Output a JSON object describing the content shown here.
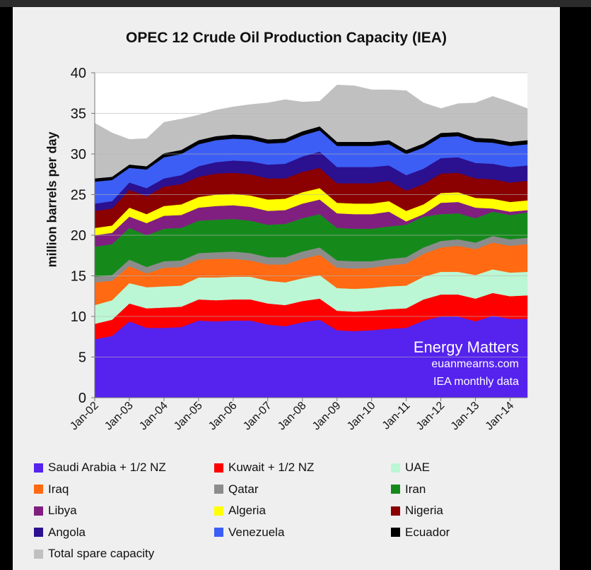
{
  "chart_data": {
    "type": "area",
    "stacked": true,
    "title": "OPEC 12 Crude Oil Production Capacity (IEA)",
    "xlabel": "",
    "ylabel": "million barrels per day",
    "ylim": [
      0,
      40
    ],
    "yticks": [
      "0",
      "5",
      "10",
      "15",
      "20",
      "25",
      "30",
      "35",
      "40"
    ],
    "xticks": [
      "Jan-02",
      "Jan-03",
      "Jan-04",
      "Jan-05",
      "Jan-06",
      "Jan-07",
      "Jan-08",
      "Jan-09",
      "Jan-10",
      "Jan-11",
      "Jan-12",
      "Jan-13",
      "Jan-14"
    ],
    "x": [
      "2002-01",
      "2002-07",
      "2003-01",
      "2003-07",
      "2004-01",
      "2004-07",
      "2005-01",
      "2005-07",
      "2006-01",
      "2006-07",
      "2007-01",
      "2007-07",
      "2008-01",
      "2008-07",
      "2009-01",
      "2009-07",
      "2010-01",
      "2010-07",
      "2011-01",
      "2011-07",
      "2012-01",
      "2012-07",
      "2013-01",
      "2013-07",
      "2014-01",
      "2014-07"
    ],
    "grid": "horizontal",
    "legend_position": "bottom",
    "series": [
      {
        "name": "Saudi Arabia + 1/2 NZ",
        "color": "#5522ee",
        "values": [
          7.2,
          7.6,
          9.4,
          8.6,
          8.6,
          8.7,
          9.5,
          9.4,
          9.5,
          9.5,
          9.0,
          8.8,
          9.3,
          9.6,
          8.3,
          8.2,
          8.3,
          8.5,
          8.6,
          9.5,
          10.0,
          10.0,
          9.4,
          10.1,
          9.7,
          9.7
        ]
      },
      {
        "name": "Kuwait + 1/2 NZ",
        "color": "#ff0000",
        "values": [
          1.9,
          2.0,
          2.2,
          2.4,
          2.5,
          2.5,
          2.6,
          2.6,
          2.6,
          2.6,
          2.6,
          2.6,
          2.6,
          2.6,
          2.4,
          2.4,
          2.4,
          2.4,
          2.4,
          2.6,
          2.7,
          2.7,
          2.8,
          2.8,
          2.8,
          2.9
        ]
      },
      {
        "name": "UAE",
        "color": "#bbf7d4",
        "values": [
          2.3,
          2.4,
          2.5,
          2.6,
          2.6,
          2.6,
          2.7,
          2.8,
          2.8,
          2.8,
          2.8,
          2.8,
          2.8,
          2.9,
          2.8,
          2.8,
          2.8,
          2.8,
          2.8,
          2.8,
          2.8,
          2.8,
          2.9,
          2.9,
          2.9,
          2.9
        ]
      },
      {
        "name": "Iraq",
        "color": "#ff6a13",
        "values": [
          2.8,
          2.4,
          2.1,
          1.7,
          2.3,
          2.3,
          2.2,
          2.3,
          2.2,
          2.0,
          2.0,
          2.2,
          2.4,
          2.5,
          2.5,
          2.5,
          2.5,
          2.6,
          2.7,
          2.8,
          3.0,
          3.2,
          3.2,
          3.3,
          3.3,
          3.4
        ]
      },
      {
        "name": "Qatar",
        "color": "#8c8c8c",
        "values": [
          0.7,
          0.7,
          0.8,
          0.8,
          0.8,
          0.8,
          0.8,
          0.8,
          0.9,
          0.9,
          0.9,
          0.9,
          0.9,
          0.9,
          0.9,
          0.9,
          0.8,
          0.8,
          0.8,
          0.8,
          0.8,
          0.8,
          0.8,
          0.8,
          0.8,
          0.8
        ]
      },
      {
        "name": "Iran",
        "color": "#158a1b",
        "values": [
          3.7,
          3.8,
          3.9,
          3.9,
          4.0,
          4.0,
          4.0,
          4.0,
          4.0,
          4.0,
          4.0,
          4.1,
          4.1,
          4.1,
          4.0,
          4.0,
          4.0,
          4.0,
          4.0,
          3.8,
          3.3,
          3.2,
          3.0,
          3.0,
          3.0,
          3.1
        ]
      },
      {
        "name": "Libya",
        "color": "#801f80",
        "values": [
          1.4,
          1.4,
          1.4,
          1.5,
          1.6,
          1.6,
          1.6,
          1.7,
          1.7,
          1.7,
          1.7,
          1.7,
          1.8,
          1.8,
          1.8,
          1.8,
          1.8,
          1.8,
          0.4,
          0.3,
          1.4,
          1.4,
          1.3,
          0.4,
          0.4,
          0.3
        ]
      },
      {
        "name": "Algeria",
        "color": "#ffff00",
        "values": [
          0.9,
          0.9,
          1.1,
          1.1,
          1.2,
          1.3,
          1.3,
          1.4,
          1.4,
          1.4,
          1.4,
          1.4,
          1.4,
          1.4,
          1.3,
          1.3,
          1.3,
          1.3,
          1.3,
          1.2,
          1.2,
          1.2,
          1.2,
          1.2,
          1.2,
          1.2
        ]
      },
      {
        "name": "Nigeria",
        "color": "#8b0000",
        "values": [
          2.1,
          2.1,
          2.2,
          2.2,
          2.4,
          2.5,
          2.5,
          2.6,
          2.6,
          2.6,
          2.6,
          2.5,
          2.5,
          2.5,
          2.4,
          2.5,
          2.5,
          2.5,
          2.5,
          2.5,
          2.4,
          2.4,
          2.4,
          2.4,
          2.4,
          2.4
        ]
      },
      {
        "name": "Angola",
        "color": "#2b1090",
        "values": [
          0.9,
          0.9,
          0.9,
          1.0,
          1.0,
          1.1,
          1.3,
          1.4,
          1.5,
          1.6,
          1.7,
          1.8,
          1.9,
          2.0,
          2.0,
          2.0,
          2.0,
          1.9,
          1.9,
          1.9,
          1.9,
          1.9,
          1.9,
          1.9,
          1.9,
          1.9
        ]
      },
      {
        "name": "Venezuela",
        "color": "#3c5ef5",
        "values": [
          2.7,
          2.6,
          1.8,
          2.3,
          2.6,
          2.6,
          2.7,
          2.7,
          2.7,
          2.7,
          2.6,
          2.6,
          2.6,
          2.6,
          2.6,
          2.6,
          2.6,
          2.6,
          2.6,
          2.6,
          2.6,
          2.6,
          2.6,
          2.6,
          2.6,
          2.6
        ]
      },
      {
        "name": "Ecuador",
        "color": "#000000",
        "values": [
          0.4,
          0.4,
          0.4,
          0.4,
          0.5,
          0.5,
          0.5,
          0.5,
          0.5,
          0.5,
          0.5,
          0.5,
          0.5,
          0.5,
          0.5,
          0.5,
          0.5,
          0.5,
          0.5,
          0.5,
          0.5,
          0.5,
          0.5,
          0.5,
          0.5,
          0.5
        ]
      },
      {
        "name": "Total spare capacity",
        "color": "#c0c0c0",
        "values": [
          6.8,
          5.4,
          3.1,
          3.4,
          3.8,
          3.8,
          3.1,
          3.2,
          3.4,
          3.8,
          4.5,
          4.8,
          3.6,
          3.1,
          7.0,
          6.9,
          6.4,
          6.2,
          7.3,
          5.0,
          3.0,
          3.5,
          4.3,
          5.2,
          4.9,
          3.9
        ]
      }
    ]
  },
  "watermark": {
    "line1": "Energy Matters",
    "line2": "euanmearns.com",
    "line3": "IEA monthly data"
  }
}
